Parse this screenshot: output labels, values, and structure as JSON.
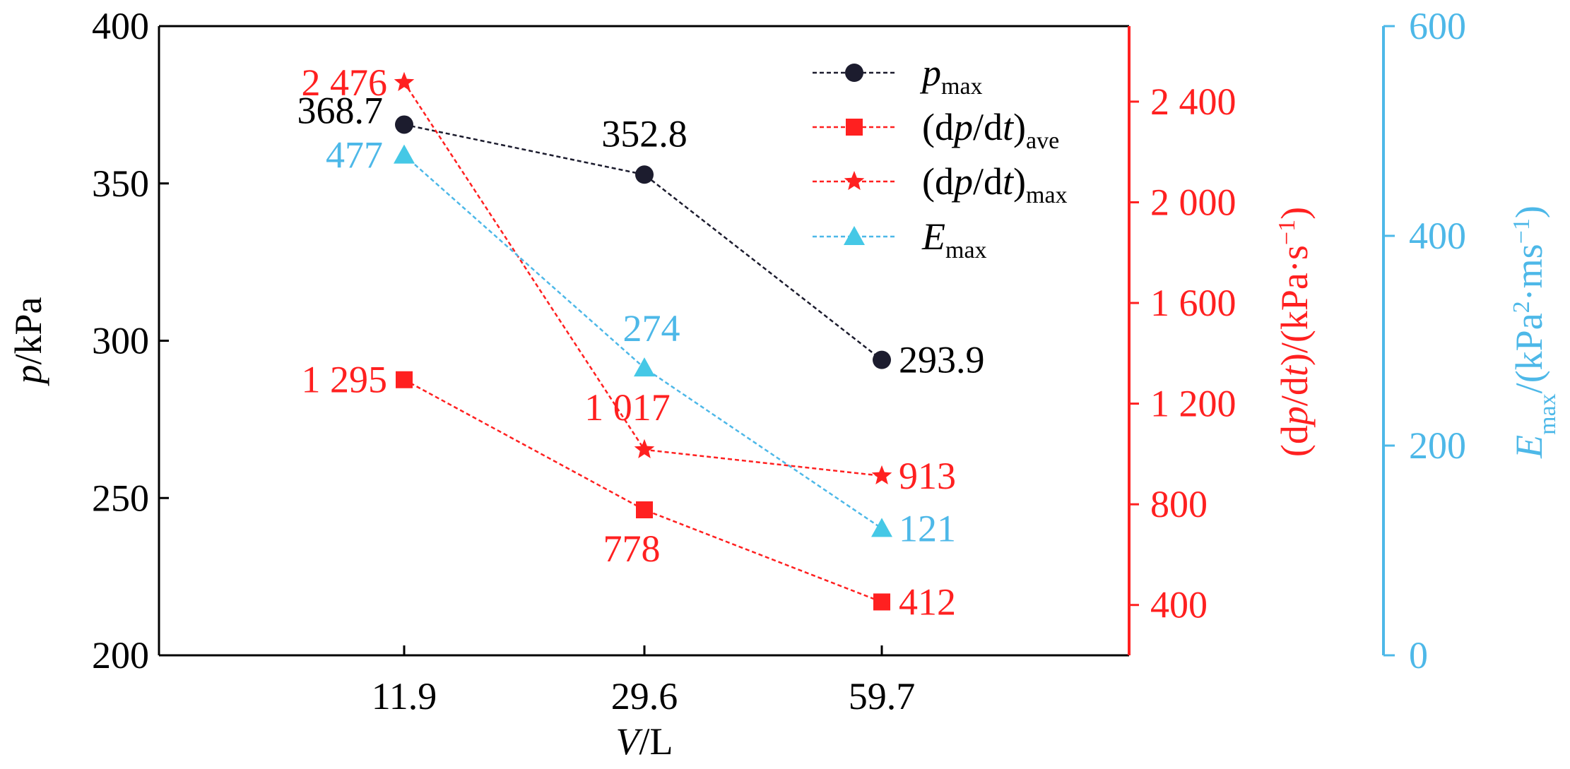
{
  "chart_data": {
    "type": "line",
    "x_axis": {
      "label_var": "V",
      "label_unit": "/L",
      "categories": [
        "11.9",
        "29.6",
        "59.7"
      ]
    },
    "left_axis": {
      "label_var": "p",
      "label_unit": "/kPa",
      "range": [
        200,
        400
      ],
      "ticks": [
        "200",
        "250",
        "300",
        "350",
        "400"
      ]
    },
    "right_axis_1": {
      "label": "(dp/dt)/(kPa·s⁻¹)",
      "label_parts": [
        "(d",
        "p",
        "/d",
        "t",
        ")/(kPa·s",
        "−1",
        ")"
      ],
      "range": [
        200,
        2700
      ],
      "ticks": [
        "400",
        "800",
        "1 200",
        "1 600",
        "2 000",
        "2 400"
      ],
      "tick_values": [
        400,
        800,
        1200,
        1600,
        2000,
        2400
      ],
      "color": "#ff2020"
    },
    "right_axis_2": {
      "label": "Emax/(kPa²·ms⁻¹)",
      "label_parts": [
        "E",
        "max",
        "/(kPa",
        "2",
        "·ms",
        "−1",
        ")"
      ],
      "range": [
        0,
        600
      ],
      "ticks": [
        "0",
        "200",
        "400",
        "600"
      ],
      "tick_values": [
        0,
        200,
        400,
        600
      ],
      "color": "#4db8e8"
    },
    "series": [
      {
        "name": "pmax",
        "legend_main": "p",
        "legend_sub": "max",
        "axis": "left",
        "marker": "circle",
        "color": "#1c1c2e",
        "values": [
          368.7,
          352.8,
          293.9
        ],
        "labels": [
          "368.7",
          "352.8",
          "293.9"
        ]
      },
      {
        "name": "(dp/dt)ave",
        "legend_main": "(dp/dt)",
        "legend_sub": "ave",
        "axis": "right1",
        "marker": "square",
        "color": "#ff2020",
        "values": [
          1295,
          778,
          412
        ],
        "labels": [
          "1 295",
          "778",
          "412"
        ]
      },
      {
        "name": "(dp/dt)max",
        "legend_main": "(dp/dt)",
        "legend_sub": "max",
        "axis": "right1",
        "marker": "star",
        "color": "#ff2020",
        "values": [
          2476,
          1017,
          913
        ],
        "labels": [
          "2 476",
          "1 017",
          "913"
        ]
      },
      {
        "name": "Emax",
        "legend_main": "E",
        "legend_sub": "max",
        "axis": "right2",
        "marker": "triangle",
        "color": "#4db8e8",
        "marker_color": "#45c8e6",
        "values": [
          477,
          274,
          121
        ],
        "labels": [
          "477",
          "274",
          "121"
        ]
      }
    ]
  }
}
